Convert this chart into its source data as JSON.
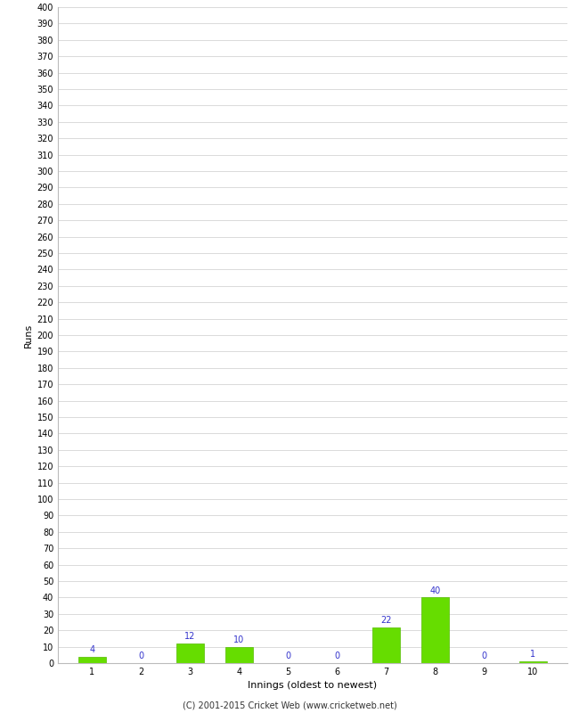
{
  "xlabel": "Innings (oldest to newest)",
  "ylabel": "Runs",
  "categories": [
    1,
    2,
    3,
    4,
    5,
    6,
    7,
    8,
    9,
    10
  ],
  "values": [
    4,
    0,
    12,
    10,
    0,
    0,
    22,
    40,
    0,
    1
  ],
  "bar_color": "#66dd00",
  "bar_edge_color": "#55bb00",
  "label_color": "#3333cc",
  "ylim": [
    0,
    400
  ],
  "ytick_step": 10,
  "background_color": "#ffffff",
  "grid_color": "#cccccc",
  "footer": "(C) 2001-2015 Cricket Web (www.cricketweb.net)",
  "tick_label_fontsize": 7,
  "axis_label_fontsize": 8,
  "footer_fontsize": 7,
  "value_label_fontsize": 7
}
